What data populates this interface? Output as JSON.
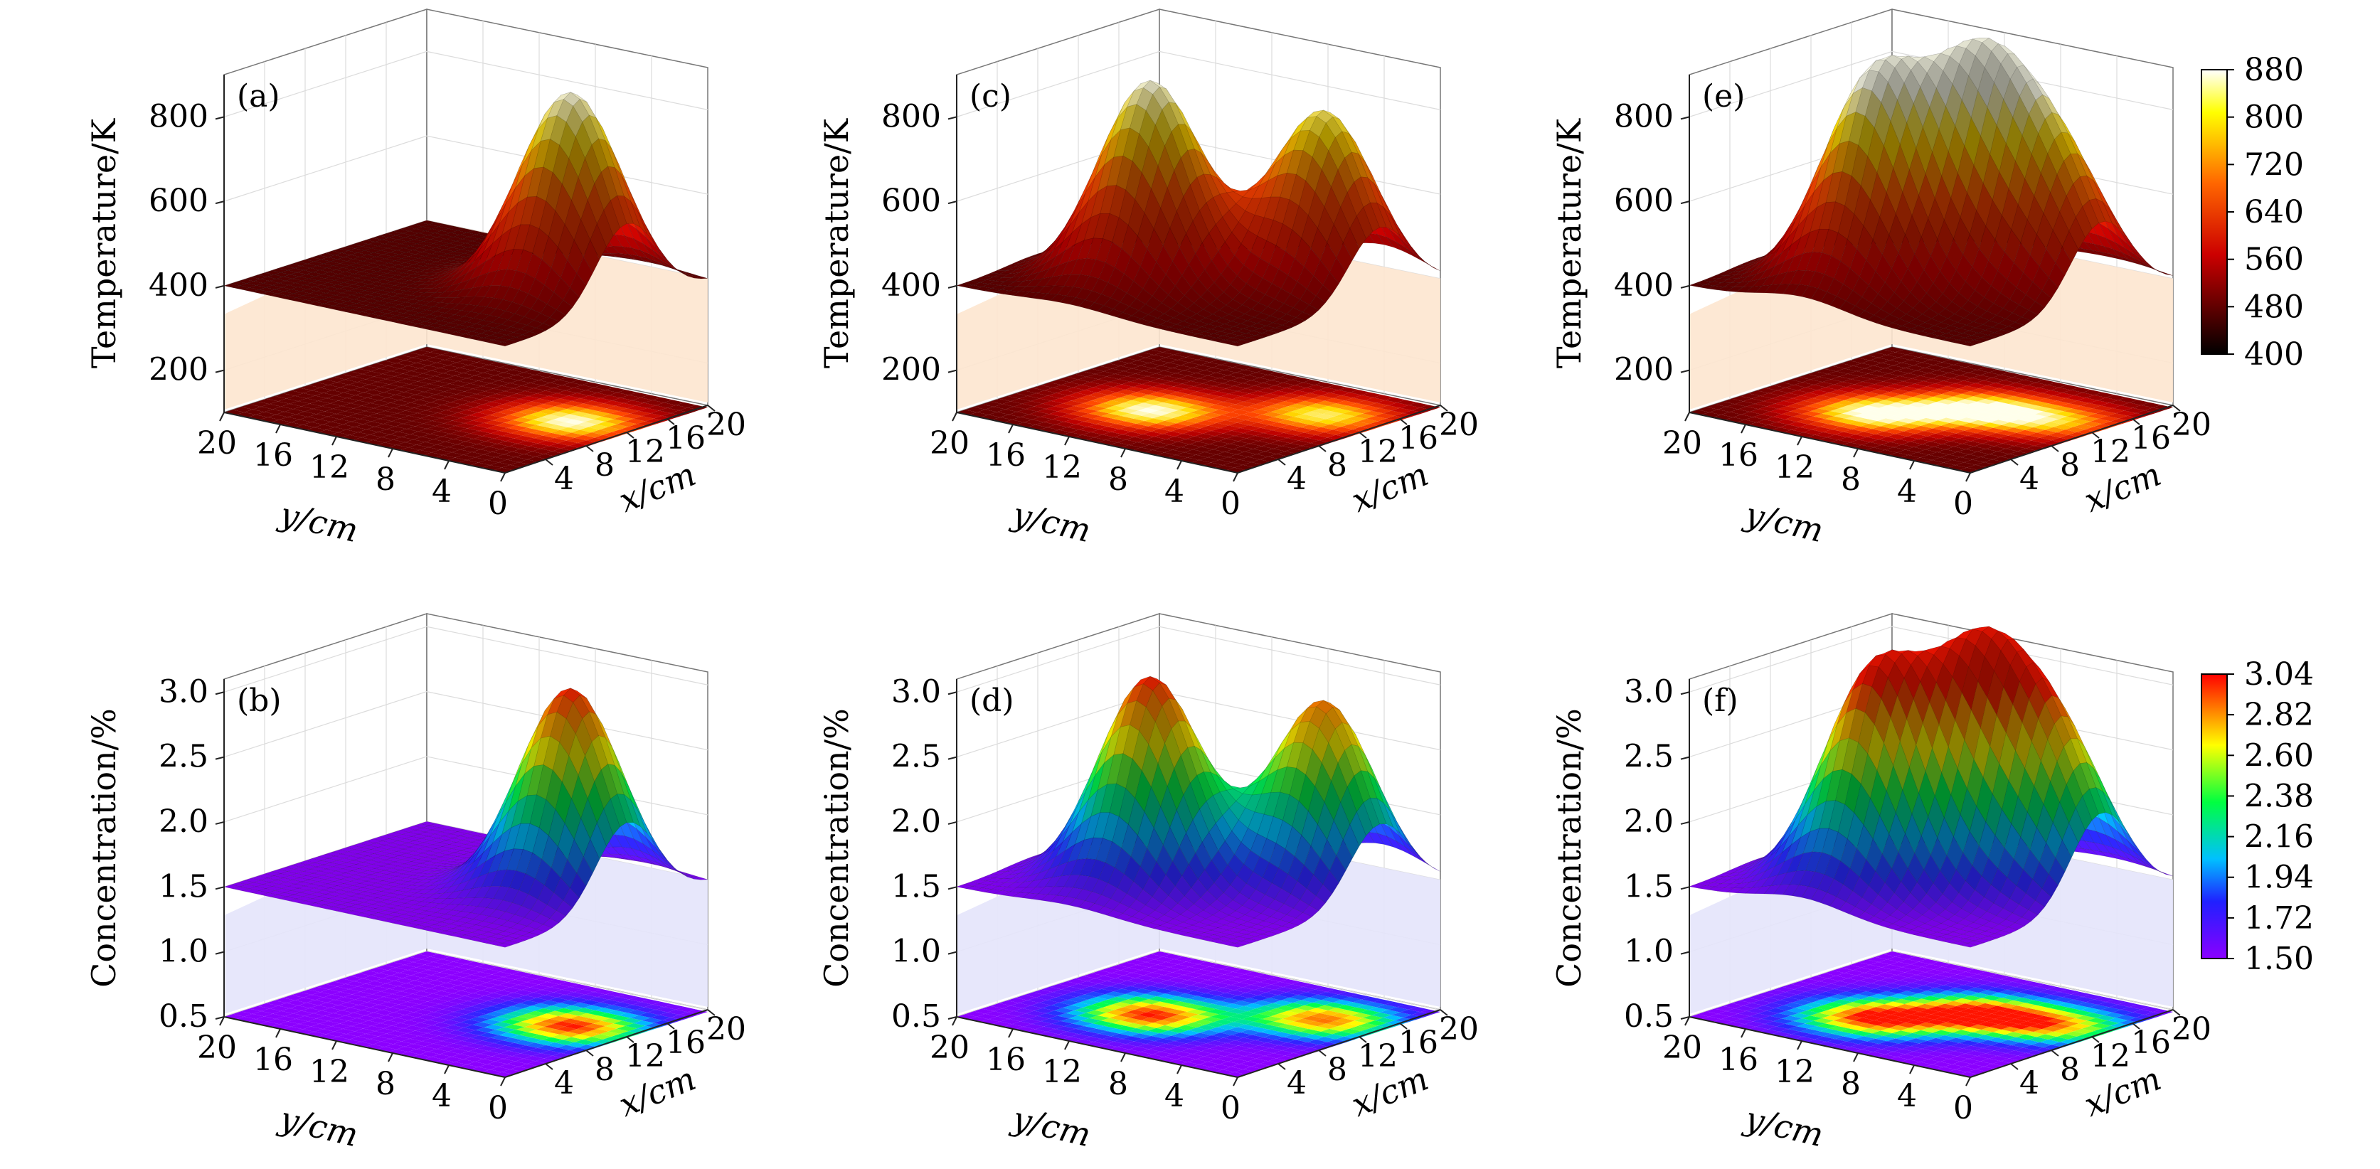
{
  "figure": {
    "panels_description": "Six 3D surface plots with projected contour maps on the floor"
  },
  "chart_data": [
    {
      "type": "surface3d",
      "panel_label": "(a)",
      "zlabel": "Temperature/K",
      "xlabel": "x/cm",
      "ylabel": "y/cm",
      "zticks": [
        "200",
        "400",
        "600",
        "800"
      ],
      "zlim": [
        100,
        900
      ],
      "xticks": [
        "4",
        "8",
        "12",
        "16",
        "20"
      ],
      "yticks": [
        "20",
        "16",
        "12",
        "8",
        "4",
        "0"
      ],
      "colormap": "hot",
      "base_level": 400,
      "peaks": [
        {
          "x": 12,
          "y": 4,
          "value": 880
        }
      ]
    },
    {
      "type": "surface3d",
      "panel_label": "(b)",
      "zlabel": "Concentration/%",
      "xlabel": "x/cm",
      "ylabel": "y/cm",
      "zticks": [
        "0.5",
        "1.0",
        "1.5",
        "2.0",
        "2.5",
        "3.0"
      ],
      "zlim": [
        0.5,
        3.1
      ],
      "xticks": [
        "4",
        "8",
        "12",
        "16",
        "20"
      ],
      "yticks": [
        "20",
        "16",
        "12",
        "8",
        "4",
        "0"
      ],
      "colormap": "rainbow",
      "base_level": 1.5,
      "peaks": [
        {
          "x": 12,
          "y": 4,
          "value": 3.1
        }
      ]
    },
    {
      "type": "surface3d",
      "panel_label": "(c)",
      "zlabel": "Temperature/K",
      "xlabel": "x/cm",
      "ylabel": "y/cm",
      "zticks": [
        "200",
        "400",
        "600",
        "800"
      ],
      "zlim": [
        100,
        900
      ],
      "xticks": [
        "4",
        "8",
        "12",
        "16",
        "20"
      ],
      "yticks": [
        "20",
        "16",
        "12",
        "8",
        "4",
        "0"
      ],
      "colormap": "hot",
      "base_level": 400,
      "peaks": [
        {
          "x": 8,
          "y": 12,
          "value": 880
        },
        {
          "x": 14,
          "y": 4,
          "value": 820
        }
      ]
    },
    {
      "type": "surface3d",
      "panel_label": "(d)",
      "zlabel": "Concentration/%",
      "xlabel": "x/cm",
      "ylabel": "y/cm",
      "zticks": [
        "0.5",
        "1.0",
        "1.5",
        "2.0",
        "2.5",
        "3.0"
      ],
      "zlim": [
        0.5,
        3.1
      ],
      "xticks": [
        "4",
        "8",
        "12",
        "16",
        "20"
      ],
      "yticks": [
        "20",
        "16",
        "12",
        "8",
        "4",
        "0"
      ],
      "colormap": "rainbow",
      "base_level": 1.5,
      "peaks": [
        {
          "x": 8,
          "y": 12,
          "value": 3.1
        },
        {
          "x": 14,
          "y": 4,
          "value": 2.95
        }
      ]
    },
    {
      "type": "surface3d",
      "panel_label": "(e)",
      "zlabel": "Temperature/K",
      "xlabel": "x/cm",
      "ylabel": "y/cm",
      "zticks": [
        "200",
        "400",
        "600",
        "800"
      ],
      "zlim": [
        100,
        900
      ],
      "xticks": [
        "4",
        "8",
        "12",
        "16",
        "20"
      ],
      "yticks": [
        "20",
        "16",
        "12",
        "8",
        "4",
        "0"
      ],
      "colormap": "hot",
      "base_level": 400,
      "peaks": [
        {
          "x": 7,
          "y": 12,
          "value": 880
        },
        {
          "x": 12,
          "y": 8,
          "value": 860
        },
        {
          "x": 13,
          "y": 3,
          "value": 700
        }
      ],
      "colorbar": {
        "ticks": [
          "880",
          "800",
          "720",
          "640",
          "560",
          "480",
          "400"
        ],
        "range": [
          400,
          880
        ]
      }
    },
    {
      "type": "surface3d",
      "panel_label": "(f)",
      "zlabel": "Concentration/%",
      "xlabel": "x/cm",
      "ylabel": "y/cm",
      "zticks": [
        "0.5",
        "1.0",
        "1.5",
        "2.0",
        "2.5",
        "3.0"
      ],
      "zlim": [
        0.5,
        3.1
      ],
      "xticks": [
        "4",
        "8",
        "12",
        "16",
        "20"
      ],
      "yticks": [
        "20",
        "16",
        "12",
        "8",
        "4",
        "0"
      ],
      "colormap": "rainbow",
      "base_level": 1.5,
      "peaks": [
        {
          "x": 7,
          "y": 12,
          "value": 3.1
        },
        {
          "x": 12,
          "y": 8,
          "value": 3.05
        },
        {
          "x": 13,
          "y": 3,
          "value": 2.6
        }
      ],
      "colorbar": {
        "ticks": [
          "3.04",
          "2.82",
          "2.60",
          "2.38",
          "2.16",
          "1.94",
          "1.72",
          "1.50"
        ],
        "range": [
          1.5,
          3.04
        ]
      }
    }
  ]
}
